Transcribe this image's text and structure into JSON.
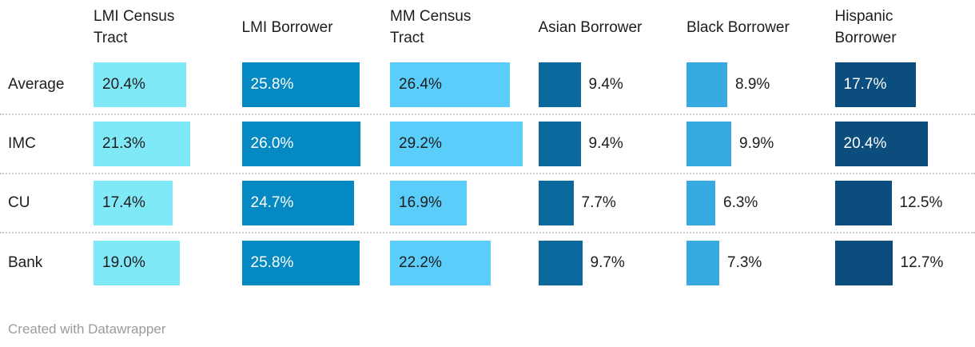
{
  "columns": [
    {
      "header": "LMI Census\nTract"
    },
    {
      "header": "LMI Borrower"
    },
    {
      "header": "MM Census\nTract"
    },
    {
      "header": "Asian Borrower"
    },
    {
      "header": "Black Borrower"
    },
    {
      "header": "Hispanic\nBorrower"
    }
  ],
  "footer": {
    "credit": "Created with Datawrapper"
  },
  "chart_data": {
    "type": "bar",
    "layout": "horizontal bar table; one bar column per series, rows are categories; value labels on or beside bars",
    "value_format": "percent, one decimal",
    "categories": [
      "Average",
      "IMC",
      "CU",
      "Bank"
    ],
    "series": [
      {
        "name": "LMI Census Tract",
        "color": "#7FE9F8",
        "label_color": "#1d1d1d",
        "values": [
          20.4,
          21.3,
          17.4,
          19.0
        ]
      },
      {
        "name": "LMI Borrower",
        "color": "#0589C2",
        "label_color": "#ffffff",
        "values": [
          25.8,
          26.0,
          24.7,
          25.8
        ]
      },
      {
        "name": "MM Census Tract",
        "color": "#5BCDFA",
        "label_color": "#1d1d1d",
        "values": [
          26.4,
          29.2,
          16.9,
          22.2
        ]
      },
      {
        "name": "Asian Borrower",
        "color": "#0C699E",
        "label_color": "#ffffff",
        "values": [
          9.4,
          9.4,
          7.7,
          9.7
        ]
      },
      {
        "name": "Black Borrower",
        "color": "#36A9E1",
        "label_color": "#1d1d1d",
        "values": [
          8.9,
          9.9,
          6.3,
          7.3
        ]
      },
      {
        "name": "Hispanic Borrower",
        "color": "#0B4D7C",
        "label_color": "#ffffff",
        "values": [
          17.7,
          20.4,
          12.5,
          12.7
        ]
      }
    ],
    "title": "",
    "grid": "dotted horizontal separators between rows",
    "legend": "none",
    "footer": "Created with Datawrapper"
  }
}
